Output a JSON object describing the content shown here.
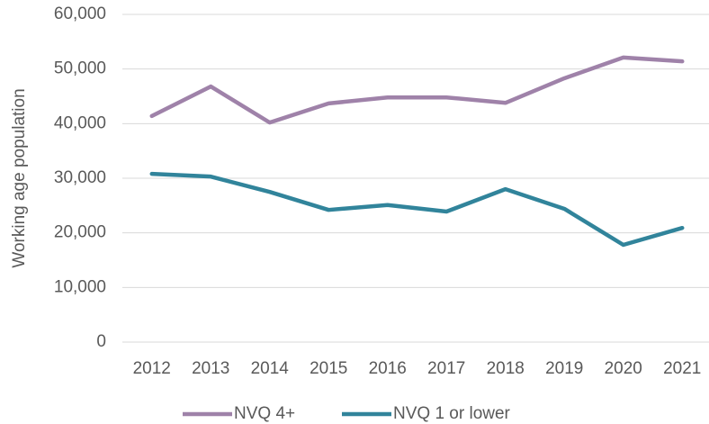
{
  "chart_data": {
    "type": "line",
    "y_label": "Working age population",
    "categories": [
      "2012",
      "2013",
      "2014",
      "2015",
      "2016",
      "2017",
      "2018",
      "2019",
      "2020",
      "2021"
    ],
    "series": [
      {
        "name": "NVQ 4+",
        "color": "#9f82a9",
        "values": [
          41400,
          46800,
          40200,
          43700,
          44800,
          44800,
          43800,
          48300,
          52100,
          51400
        ]
      },
      {
        "name": "NVQ 1 or lower",
        "color": "#31849b",
        "values": [
          30800,
          30300,
          27500,
          24200,
          25100,
          23900,
          28000,
          24400,
          17800,
          20900
        ]
      }
    ],
    "ylim": [
      0,
      60000
    ],
    "yticks": [
      0,
      {
        "value": 10000,
        "label": "10,000"
      },
      {
        "value": 20000,
        "label": "20,000"
      },
      {
        "value": 30000,
        "label": "30,000"
      },
      {
        "value": 40000,
        "label": "40,000"
      },
      {
        "value": 50000,
        "label": "50,000"
      },
      {
        "value": 60000,
        "label": "60,000"
      }
    ],
    "grid": true,
    "legend": "bottom"
  }
}
